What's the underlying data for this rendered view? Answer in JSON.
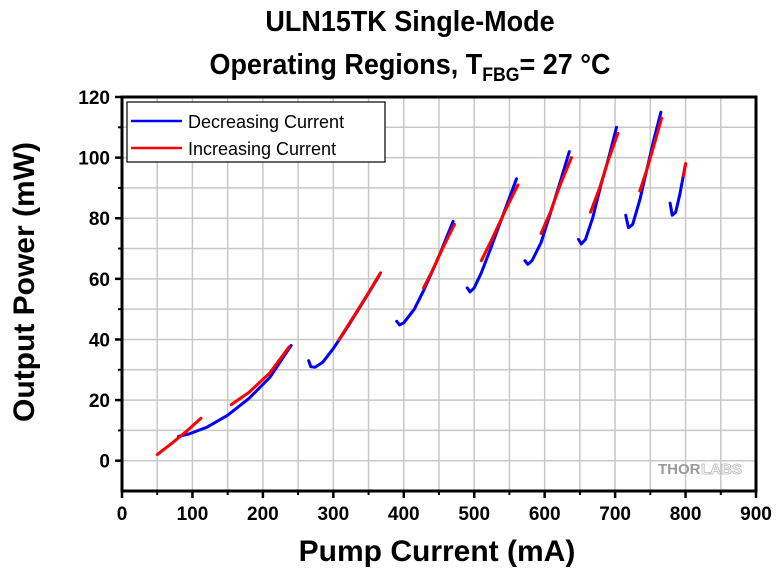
{
  "chart_data": {
    "type": "line",
    "title_line1": "ULN15TK Single-Mode",
    "title_line2_prefix": "Operating Regions, T",
    "title_line2_sub": "FBG",
    "title_line2_suffix": "= 27 °C",
    "xlabel": "Pump Current (mA)",
    "ylabel": "Output Power (mW)",
    "xlim": [
      0,
      900
    ],
    "ylim": [
      -10,
      120
    ],
    "xticks": [
      0,
      100,
      200,
      300,
      400,
      500,
      600,
      700,
      800,
      900
    ],
    "yticks": [
      0,
      20,
      40,
      60,
      80,
      100,
      120
    ],
    "x_minor_step": 50,
    "y_minor_step": 10,
    "grid": true,
    "legend_position": "top-left",
    "series": [
      {
        "name": "Decreasing Current",
        "color": "#0000ff",
        "segments": [
          [
            [
              80,
              8
            ],
            [
              95,
              8.8
            ],
            [
              120,
              11
            ],
            [
              150,
              15
            ],
            [
              180,
              20.5
            ],
            [
              210,
              27.5
            ],
            [
              240,
              38
            ]
          ],
          [
            [
              265,
              33
            ],
            [
              268,
              31
            ],
            [
              274,
              30.8
            ],
            [
              285,
              32.5
            ],
            [
              300,
              37
            ],
            [
              320,
              44
            ],
            [
              340,
              51.5
            ],
            [
              365,
              61
            ]
          ],
          [
            [
              390,
              46
            ],
            [
              394,
              44.8
            ],
            [
              400,
              45.5
            ],
            [
              415,
              50
            ],
            [
              430,
              57
            ],
            [
              450,
              67.5
            ],
            [
              470,
              79
            ]
          ],
          [
            [
              490,
              57
            ],
            [
              494,
              55.7
            ],
            [
              500,
              57
            ],
            [
              510,
              62
            ],
            [
              525,
              71
            ],
            [
              540,
              80.5
            ],
            [
              560,
              93
            ]
          ],
          [
            [
              572,
              66
            ],
            [
              576,
              64.8
            ],
            [
              582,
              66
            ],
            [
              595,
              72
            ],
            [
              610,
              83
            ],
            [
              622,
              92
            ],
            [
              635,
              102
            ]
          ],
          [
            [
              648,
              73
            ],
            [
              652,
              71.5
            ],
            [
              658,
              73
            ],
            [
              668,
              80
            ],
            [
              680,
              91
            ],
            [
              692,
              101
            ],
            [
              702,
              110
            ]
          ],
          [
            [
              715,
              81
            ],
            [
              719,
              76.8
            ],
            [
              725,
              78
            ],
            [
              735,
              86
            ],
            [
              745,
              96
            ],
            [
              755,
              106
            ],
            [
              765,
              115
            ]
          ],
          [
            [
              778,
              85
            ],
            [
              781,
              81
            ],
            [
              786,
              82
            ],
            [
              792,
              88
            ],
            [
              800,
              98
            ]
          ]
        ]
      },
      {
        "name": "Increasing Current",
        "color": "#ff0000",
        "segments": [
          [
            [
              50,
              2
            ],
            [
              70,
              5.6
            ],
            [
              90,
              9.4
            ],
            [
              112,
              14
            ]
          ],
          [
            [
              155,
              18.5
            ],
            [
              180,
              22.5
            ],
            [
              210,
              29
            ],
            [
              237,
              37.5
            ]
          ],
          [
            [
              308,
              40
            ],
            [
              330,
              48
            ],
            [
              350,
              55.5
            ],
            [
              367,
              62
            ]
          ],
          [
            [
              428,
              57
            ],
            [
              440,
              62.5
            ],
            [
              455,
              70
            ],
            [
              472,
              78
            ]
          ],
          [
            [
              510,
              66
            ],
            [
              525,
              73
            ],
            [
              545,
              83
            ],
            [
              562,
              91
            ]
          ],
          [
            [
              595,
              75
            ],
            [
              608,
              82
            ],
            [
              622,
              91
            ],
            [
              638,
              100
            ]
          ],
          [
            [
              665,
              82
            ],
            [
              678,
              90
            ],
            [
              690,
              99
            ],
            [
              704,
              108
            ]
          ],
          [
            [
              735,
              89
            ],
            [
              745,
              96
            ],
            [
              755,
              104
            ],
            [
              766,
              113
            ]
          ],
          [
            [
              797,
              94
            ],
            [
              800,
              98
            ]
          ]
        ]
      }
    ]
  },
  "legend": {
    "items": [
      {
        "label": "Decreasing Current",
        "color": "#0000ff"
      },
      {
        "label": "Increasing Current",
        "color": "#ff0000"
      }
    ]
  },
  "watermark": {
    "part1": "THOR",
    "part2": "LABS"
  }
}
